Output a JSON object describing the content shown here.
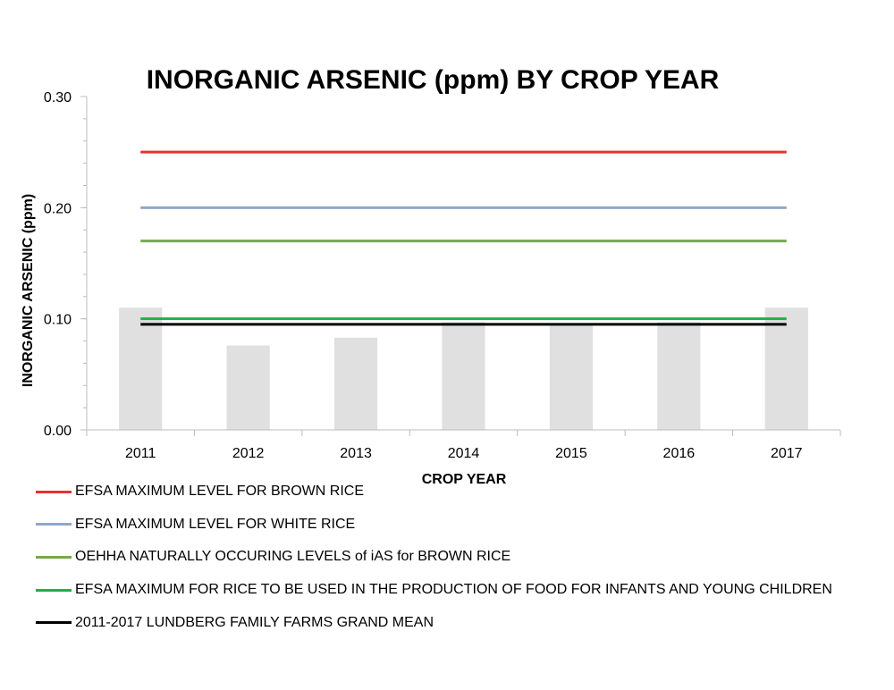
{
  "chart_data": {
    "type": "bar",
    "title": "INORGANIC ARSENIC (ppm) BY CROP YEAR",
    "xlabel": "CROP YEAR",
    "ylabel": "INORGANIC ARSENIC (ppm)",
    "ylim": [
      0,
      0.3
    ],
    "yticks": [
      "0.00",
      "0.10",
      "0.20",
      "0.30"
    ],
    "ytick_values": [
      0,
      0.1,
      0.2,
      0.3
    ],
    "categories": [
      "2011",
      "2012",
      "2013",
      "2014",
      "2015",
      "2016",
      "2017"
    ],
    "values": [
      0.11,
      0.076,
      0.083,
      0.097,
      0.096,
      0.097,
      0.11
    ],
    "bar_color": "#e0e0e0",
    "reference_lines": [
      {
        "name": "EFSA MAXIMUM LEVEL FOR BROWN RICE",
        "value": 0.25,
        "color": "#e8312f"
      },
      {
        "name": "EFSA MAXIMUM LEVEL FOR WHITE RICE",
        "value": 0.2,
        "color": "#8fa8c8"
      },
      {
        "name": "OEHHA NATURALLY OCCURING LEVELS of iAS for BROWN RICE",
        "value": 0.17,
        "color": "#77a84a"
      },
      {
        "name": "EFSA MAXIMUM FOR RICE TO BE USED IN THE PRODUCTION OF FOOD FOR INFANTS AND YOUNG CHILDREN",
        "value": 0.1,
        "color": "#1db24b"
      },
      {
        "name": "2011-2017 LUNDBERG FAMILY FARMS GRAND MEAN",
        "value": 0.095,
        "color": "#000000"
      }
    ],
    "legend_position": "bottom-left",
    "grid": false
  }
}
